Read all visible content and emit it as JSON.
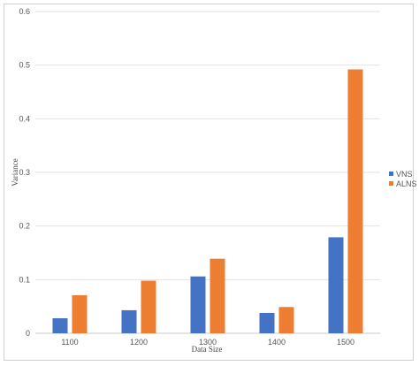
{
  "chart_data": {
    "type": "bar",
    "title": "",
    "xlabel": "Data Size",
    "ylabel": "Variance",
    "categories": [
      "1100",
      "1200",
      "1300",
      "1400",
      "1500"
    ],
    "series": [
      {
        "name": "VNS",
        "color": "#4472C4",
        "values": [
          0.028,
          0.043,
          0.106,
          0.038,
          0.179
        ]
      },
      {
        "name": "ALNS",
        "color": "#ED7D31",
        "values": [
          0.071,
          0.098,
          0.139,
          0.049,
          0.492
        ]
      }
    ],
    "ylim": [
      0,
      0.6
    ],
    "yticks": [
      "0",
      "0.1",
      "0.2",
      "0.3",
      "0.4",
      "0.5",
      "0.6"
    ],
    "grid": true,
    "legend_position": "right"
  }
}
